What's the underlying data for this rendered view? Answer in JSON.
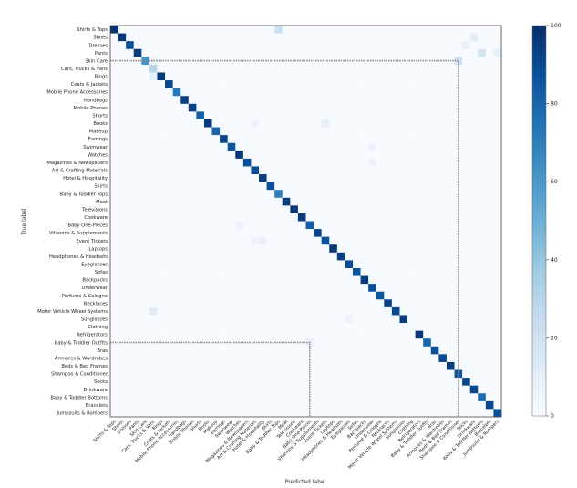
{
  "chart_data": {
    "type": "heatmap",
    "title": "",
    "xlabel": "Predicted label",
    "ylabel": "True label",
    "labels": [
      "Shirts & Tops",
      "Shoes",
      "Dresses",
      "Pants",
      "Skin Care",
      "Cars, Trucks & Vans",
      "Rings",
      "Coats & Jackets",
      "Mobile Phone Accessories",
      "Handbags",
      "Mobile Phones",
      "Shorts",
      "Books",
      "Makeup",
      "Earrings",
      "Swimwear",
      "Watches",
      "Magazines & Newspapers",
      "Art & Crafting Materials",
      "Hotel & Hospitality",
      "Skirts",
      "Baby & Toddler Tops",
      "Meat",
      "Televisions",
      "Cookware",
      "Baby One-Pieces",
      "Vitamins & Supplements",
      "Event Tickets",
      "Laptops",
      "Headphones & Headsets",
      "Eyeglasses",
      "Sofas",
      "Backpacks",
      "Underwear",
      "Perfume & Cologne",
      "Necklaces",
      "Motor Vehicle Wheel Systems",
      "Sunglasses",
      "Clothing",
      "Refrigerators",
      "Baby & Toddler Outfits",
      "Bras",
      "Armoires & Wardrobes",
      "Beds & Bed Frames",
      "Shampoo & Conditioner",
      "Socks",
      "Drinkware",
      "Baby & Toddler Bottoms",
      "Bracelets",
      "Jumpsuits & Rompers"
    ],
    "diagonal": [
      98,
      97,
      88,
      96,
      62,
      28,
      96,
      92,
      72,
      94,
      93,
      82,
      96,
      80,
      92,
      85,
      98,
      88,
      90,
      95,
      88,
      70,
      95,
      97,
      96,
      82,
      92,
      88,
      97,
      95,
      90,
      86,
      95,
      88,
      85,
      93,
      90,
      96,
      0,
      97,
      80,
      88,
      90,
      96,
      85,
      92,
      90,
      78,
      90,
      88
    ],
    "off_diagonal": [
      {
        "row": 0,
        "col": 21,
        "value": 22
      },
      {
        "row": 1,
        "col": 46,
        "value": 10
      },
      {
        "row": 2,
        "col": 45,
        "value": 8
      },
      {
        "row": 3,
        "col": 47,
        "value": 18
      },
      {
        "row": 3,
        "col": 49,
        "value": 8
      },
      {
        "row": 4,
        "col": 5,
        "value": 6
      },
      {
        "row": 4,
        "col": 44,
        "value": 20
      },
      {
        "row": 6,
        "col": 5,
        "value": 8
      },
      {
        "row": 12,
        "col": 18,
        "value": 6
      },
      {
        "row": 12,
        "col": 27,
        "value": 8
      },
      {
        "row": 17,
        "col": 33,
        "value": 6
      },
      {
        "row": 25,
        "col": 16,
        "value": 6
      },
      {
        "row": 27,
        "col": 19,
        "value": 8
      },
      {
        "row": 27,
        "col": 18,
        "value": 5
      },
      {
        "row": 36,
        "col": 5,
        "value": 10
      },
      {
        "row": 37,
        "col": 30,
        "value": 6
      },
      {
        "row": 40,
        "col": 25,
        "value": 8
      },
      {
        "row": 15,
        "col": 33,
        "value": 6
      }
    ],
    "colorbar": {
      "min": 0,
      "max": 100,
      "ticks": [
        0,
        20,
        40,
        60,
        80,
        100
      ],
      "colormap": "Blues"
    },
    "highlight_paths": [
      {
        "from_row": 4,
        "to_col": 44
      },
      {
        "from_row": 40,
        "to_col": 25
      }
    ]
  }
}
